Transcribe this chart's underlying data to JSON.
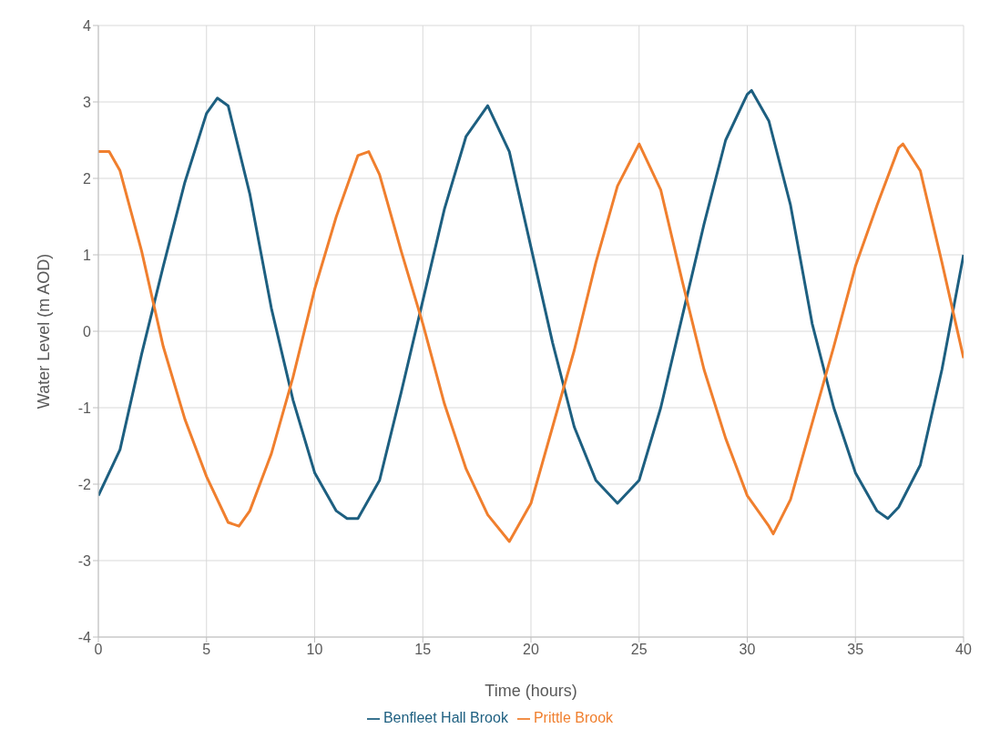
{
  "chart_data": {
    "type": "line",
    "xlabel": "Time (hours)",
    "ylabel": "Water Level (m AOD)",
    "xlim": [
      0,
      40
    ],
    "xticks": [
      0,
      5,
      10,
      15,
      20,
      25,
      30,
      35,
      40
    ],
    "ylim": [
      -4,
      4
    ],
    "yticks": [
      -4,
      -3,
      -2,
      -1,
      0,
      1,
      2,
      3,
      4
    ],
    "grid": true,
    "legend": "bottom",
    "marker": "none",
    "line_style": "solid",
    "series": [
      {
        "name": "Benfleet Hall Brook",
        "color": "#1d5f80",
        "x": [
          0,
          1,
          2,
          3,
          4,
          5,
          5.5,
          6,
          7,
          8,
          9,
          10,
          11,
          11.5,
          12,
          13,
          14,
          15,
          16,
          17,
          18,
          19,
          20,
          21,
          22,
          23,
          24,
          25,
          26,
          27,
          28,
          29,
          30,
          30.2,
          31,
          32,
          33,
          34,
          35,
          36,
          36.5,
          37,
          38,
          39,
          40
        ],
        "values": [
          -2.15,
          -1.55,
          -0.3,
          0.85,
          1.95,
          2.85,
          3.05,
          2.95,
          1.8,
          0.3,
          -0.9,
          -1.85,
          -2.35,
          -2.45,
          -2.45,
          -1.95,
          -0.8,
          0.4,
          1.6,
          2.55,
          2.95,
          2.35,
          1.1,
          -0.15,
          -1.25,
          -1.95,
          -2.25,
          -1.95,
          -1.0,
          0.2,
          1.4,
          2.5,
          3.1,
          3.15,
          2.75,
          1.65,
          0.1,
          -1.0,
          -1.85,
          -2.35,
          -2.45,
          -2.3,
          -1.75,
          -0.5,
          1.0
        ]
      },
      {
        "name": "Prittle Brook",
        "color": "#f07f2e",
        "x": [
          0,
          0.5,
          1,
          2,
          3,
          4,
          5,
          6,
          6.5,
          7,
          8,
          9,
          10,
          11,
          12,
          12.5,
          13,
          14,
          15,
          16,
          17,
          18,
          19,
          20,
          21,
          22,
          23,
          24,
          25,
          26,
          27,
          28,
          29,
          30,
          31,
          31.2,
          32,
          33,
          34,
          35,
          36,
          37,
          37.2,
          38,
          39,
          40
        ],
        "values": [
          2.35,
          2.35,
          2.1,
          1.05,
          -0.2,
          -1.15,
          -1.9,
          -2.5,
          -2.55,
          -2.35,
          -1.6,
          -0.6,
          0.55,
          1.5,
          2.3,
          2.35,
          2.05,
          1.05,
          0.1,
          -0.95,
          -1.8,
          -2.4,
          -2.75,
          -2.25,
          -1.25,
          -0.25,
          0.9,
          1.9,
          2.45,
          1.85,
          0.65,
          -0.5,
          -1.4,
          -2.15,
          -2.55,
          -2.65,
          -2.2,
          -1.2,
          -0.2,
          0.85,
          1.65,
          2.4,
          2.45,
          2.1,
          0.9,
          -0.35
        ]
      }
    ]
  }
}
